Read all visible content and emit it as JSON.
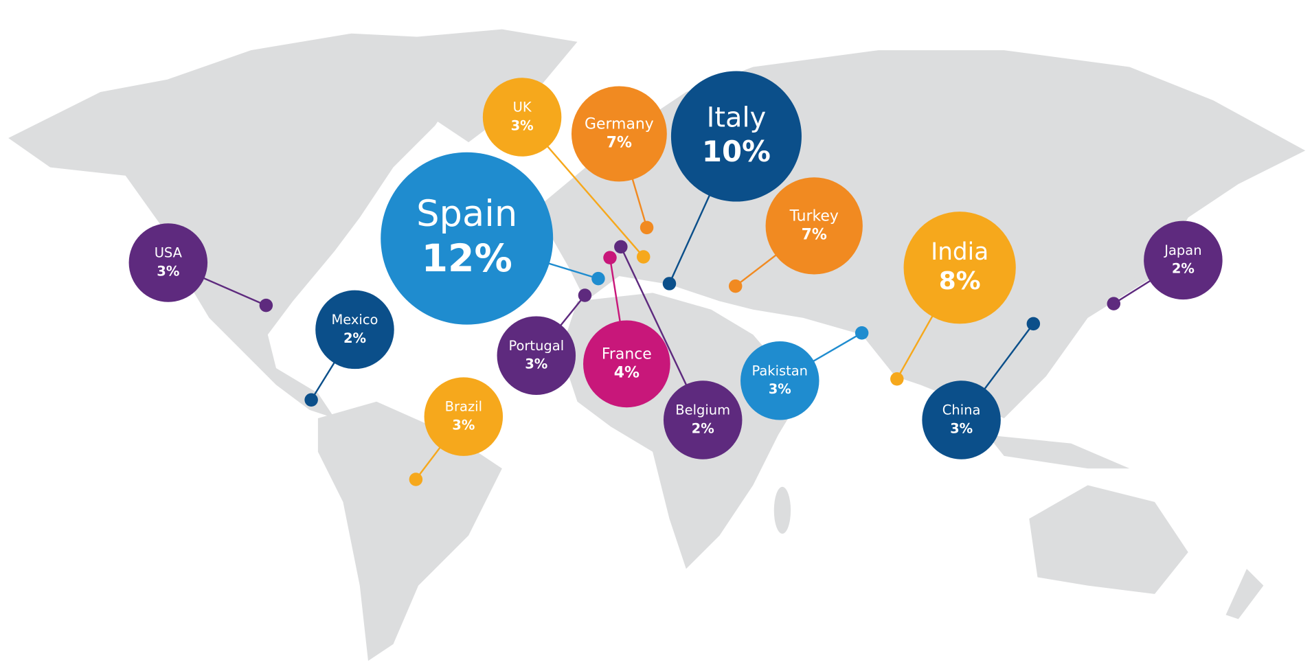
{
  "bubbles": [
    {
      "name": "UK",
      "share": "3%",
      "color": "#f6a81c"
    },
    {
      "name": "Germany",
      "share": "7%",
      "color": "#f18a21"
    },
    {
      "name": "Italy",
      "share": "10%",
      "color": "#0b4f8a"
    },
    {
      "name": "Spain",
      "share": "12%",
      "color": "#1f8ccf"
    },
    {
      "name": "Turkey",
      "share": "7%",
      "color": "#f18a21"
    },
    {
      "name": "India",
      "share": "8%",
      "color": "#f6a81c"
    },
    {
      "name": "Japan",
      "share": "2%",
      "color": "#5e2a7e"
    },
    {
      "name": "USA",
      "share": "3%",
      "color": "#5e2a7e"
    },
    {
      "name": "Mexico",
      "share": "2%",
      "color": "#0b4f8a"
    },
    {
      "name": "Portugal",
      "share": "3%",
      "color": "#5e2a7e"
    },
    {
      "name": "France",
      "share": "4%",
      "color": "#c8177a"
    },
    {
      "name": "Belgium",
      "share": "2%",
      "color": "#5e2a7e"
    },
    {
      "name": "Pakistan",
      "share": "3%",
      "color": "#1f8ccf"
    },
    {
      "name": "China",
      "share": "3%",
      "color": "#0b4f8a"
    },
    {
      "name": "Brazil",
      "share": "3%",
      "color": "#f6a81c"
    }
  ]
}
